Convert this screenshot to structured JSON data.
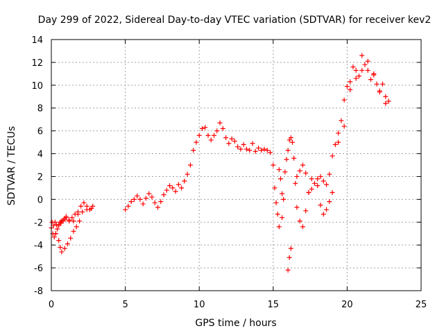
{
  "chart_data": {
    "type": "scatter",
    "title": "Day 299 of 2022, Sidereal Day-to-day VTEC variation (SDTVAR) for receiver kev2",
    "xlabel": "GPS time / hours",
    "ylabel": "SDTVAR / TECUs",
    "xlim": [
      0,
      25
    ],
    "ylim": [
      -8,
      14
    ],
    "xticks": [
      0,
      5,
      10,
      15,
      20,
      25
    ],
    "yticks": [
      -8,
      -6,
      -4,
      -2,
      0,
      2,
      4,
      6,
      8,
      10,
      12,
      14
    ],
    "grid": true,
    "marker": "+",
    "color": "#ff0000",
    "series": [
      {
        "name": "kev2",
        "x": [
          0.0,
          0.1,
          0.2,
          0.3,
          0.4,
          0.5,
          0.6,
          0.7,
          0.8,
          0.9,
          1.0,
          1.2,
          1.4,
          1.6,
          1.8,
          2.0,
          2.2,
          2.4,
          2.6,
          2.8,
          0.05,
          0.15,
          0.25,
          0.35,
          0.5,
          0.65,
          0.8,
          1.0,
          1.2,
          1.5,
          1.8,
          2.1,
          2.4,
          2.7,
          0.3,
          0.5,
          0.6,
          0.7,
          0.9,
          1.1,
          1.3,
          1.5,
          1.7,
          1.9,
          5.0,
          5.2,
          5.4,
          5.6,
          5.8,
          6.0,
          6.2,
          6.4,
          6.6,
          6.8,
          7.0,
          7.2,
          7.4,
          7.6,
          7.8,
          8.0,
          8.2,
          8.4,
          8.6,
          8.8,
          9.0,
          9.2,
          9.4,
          9.6,
          9.8,
          10.0,
          10.2,
          10.4,
          10.6,
          10.8,
          11.0,
          11.2,
          11.4,
          11.6,
          11.8,
          12.0,
          12.2,
          12.4,
          12.6,
          12.8,
          13.0,
          13.2,
          13.4,
          13.6,
          13.8,
          14.0,
          14.2,
          14.4,
          14.6,
          14.8,
          15.0,
          15.1,
          15.2,
          15.3,
          15.4,
          15.5,
          15.6,
          15.7,
          15.8,
          15.9,
          16.0,
          16.1,
          16.2,
          16.3,
          16.4,
          16.5,
          16.6,
          16.8,
          17.0,
          17.2,
          17.4,
          17.6,
          17.8,
          18.0,
          18.2,
          18.4,
          18.6,
          18.8,
          19.0,
          19.2,
          19.4,
          19.6,
          19.8,
          20.0,
          20.2,
          20.4,
          20.6,
          20.8,
          21.0,
          21.2,
          21.4,
          21.6,
          21.8,
          22.0,
          22.2,
          22.4,
          22.6,
          22.8,
          16.0,
          16.1,
          16.2,
          15.4,
          15.6,
          16.6,
          16.8,
          17.0,
          17.2,
          17.4,
          17.6,
          18.0,
          18.2,
          18.4,
          18.6,
          18.8,
          19.0,
          19.4,
          19.8,
          20.2,
          20.6,
          21.0,
          21.4,
          21.8,
          22.2,
          22.6
        ],
        "y": [
          -2.5,
          -3.0,
          -3.3,
          -3.0,
          -2.6,
          -2.2,
          -2.0,
          -1.9,
          -1.8,
          -1.7,
          -1.6,
          -1.8,
          -1.6,
          -1.3,
          -1.1,
          -0.6,
          -0.3,
          -0.6,
          -0.9,
          -0.6,
          -2.0,
          -2.3,
          -2.0,
          -2.2,
          -2.3,
          -2.1,
          -1.9,
          -1.5,
          -1.9,
          -1.9,
          -1.3,
          -1.1,
          -0.9,
          -0.8,
          -3.0,
          -3.6,
          -4.2,
          -4.6,
          -4.3,
          -3.9,
          -3.4,
          -2.8,
          -2.4,
          -1.9,
          -0.9,
          -0.6,
          -0.2,
          0.0,
          0.3,
          0.0,
          -0.4,
          0.1,
          0.5,
          0.2,
          -0.3,
          -0.7,
          -0.2,
          0.4,
          0.8,
          1.2,
          1.0,
          0.7,
          1.3,
          1.0,
          1.6,
          2.2,
          3.0,
          4.3,
          5.0,
          5.6,
          6.2,
          6.3,
          5.6,
          5.2,
          5.6,
          6.0,
          6.7,
          6.2,
          5.4,
          4.9,
          5.3,
          5.1,
          4.6,
          4.4,
          4.8,
          4.4,
          4.3,
          4.9,
          4.2,
          4.5,
          4.3,
          4.4,
          4.3,
          4.1,
          3.0,
          1.0,
          -0.3,
          -1.3,
          2.6,
          1.8,
          0.5,
          0.0,
          2.4,
          3.5,
          4.3,
          5.2,
          5.4,
          5.0,
          3.6,
          1.4,
          -0.7,
          -1.9,
          -2.4,
          -1.0,
          0.6,
          0.9,
          1.4,
          1.8,
          2.0,
          1.6,
          1.3,
          2.2,
          3.8,
          4.8,
          5.8,
          6.9,
          8.7,
          9.9,
          10.3,
          11.6,
          11.3,
          10.8,
          12.6,
          11.8,
          11.3,
          10.5,
          10.9,
          10.1,
          9.5,
          10.1,
          8.4,
          8.6,
          -6.2,
          -5.1,
          -4.3,
          -2.4,
          -1.6,
          2.0,
          2.5,
          3.0,
          2.3,
          0.6,
          1.8,
          1.2,
          -0.5,
          -1.3,
          -0.9,
          -0.2,
          0.6,
          5.0,
          6.4,
          9.6,
          10.6,
          11.3,
          12.1,
          11.0,
          9.4,
          9.0
        ]
      }
    ]
  }
}
